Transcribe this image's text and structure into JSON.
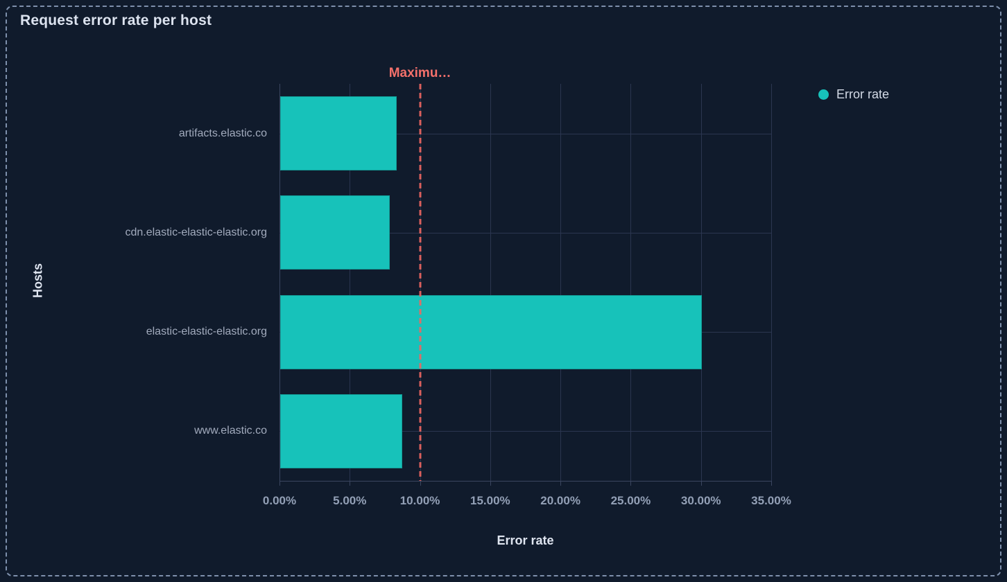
{
  "panel": {
    "title": "Request error rate per host"
  },
  "legend": {
    "position": "right",
    "items": [
      {
        "label": "Error rate",
        "color": "#17c2ba"
      }
    ]
  },
  "chart_data": {
    "type": "bar",
    "orientation": "horizontal",
    "title": "Request error rate per host",
    "categories": [
      "artifacts.elastic.co",
      "cdn.elastic-elastic-elastic.org",
      "elastic-elastic-elastic.org",
      "www.elastic.co"
    ],
    "series": [
      {
        "name": "Error rate",
        "color": "#17c2ba",
        "values": [
          8.3,
          7.8,
          30.0,
          8.7
        ]
      }
    ],
    "value_unit": "percent",
    "xlabel": "Error rate",
    "ylabel": "Hosts",
    "xlim": [
      0,
      35
    ],
    "x_ticks": [
      "0.00%",
      "5.00%",
      "10.00%",
      "15.00%",
      "20.00%",
      "25.00%",
      "30.00%",
      "35.00%"
    ],
    "x_tick_values": [
      0,
      5,
      10,
      15,
      20,
      25,
      30,
      35
    ],
    "grid": true,
    "legend_position": "top-right",
    "annotation": {
      "label": "Maximu…",
      "full_label_truncated": true,
      "value": 10,
      "color": "#f4706b",
      "line_style": "dashed"
    }
  },
  "colors": {
    "background": "#101b2c",
    "panel_border": "#7e90ac",
    "bar": "#17c2ba",
    "gridline": "#2b3650",
    "axis_line": "#3b4660",
    "annotation": "#f4706b",
    "title_text": "#dce3ef",
    "tick_text": "#93a0b6",
    "category_text": "#a2abbd"
  }
}
